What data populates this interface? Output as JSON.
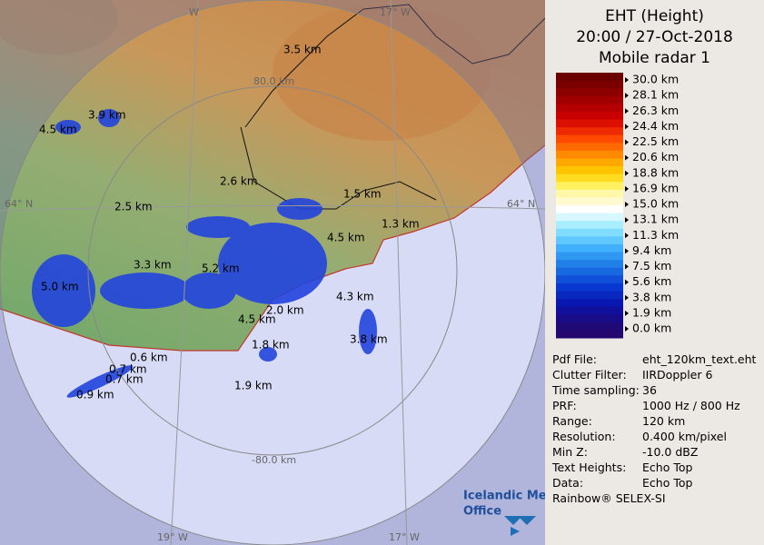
{
  "header": {
    "title": "EHT (Height)",
    "time": "20:00 / 27-Oct-2018",
    "station": "Mobile radar 1"
  },
  "legend": {
    "labels": [
      "30.0 km",
      "28.1 km",
      "26.3 km",
      "24.4 km",
      "22.5 km",
      "20.6 km",
      "18.8 km",
      "16.9 km",
      "15.0 km",
      "13.1 km",
      "11.3 km",
      "9.4 km",
      "7.5 km",
      "5.6 km",
      "3.8 km",
      "1.9 km",
      "0.0 km"
    ]
  },
  "info": {
    "rows": [
      [
        "Pdf File:",
        "eht_120km_text.eht"
      ],
      [
        "Clutter Filter:",
        "IIRDoppler 6"
      ],
      [
        "Time sampling:",
        "36"
      ],
      [
        "PRF:",
        "1000 Hz / 800 Hz"
      ],
      [
        "Range:",
        "120 km"
      ],
      [
        "Resolution:",
        "0.400 km/pixel"
      ],
      [
        "Min Z:",
        "-10.0 dBZ"
      ],
      [
        "Text Heights:",
        "Echo Top"
      ],
      [
        "Data:",
        "Echo Top"
      ]
    ],
    "footer": "Rainbow® SELEX-SI"
  },
  "map": {
    "grid_labels": [
      "W",
      "17° W",
      "80.0 km",
      "64° N",
      "64° N",
      "-80.0 km",
      "19° W",
      "17° W"
    ],
    "annotations": [
      "3.5 km",
      "3.9 km",
      "4.5 km",
      "2.6 km",
      "1.5 km",
      "2.5 km",
      "1.3 km",
      "4.5 km",
      "3.3 km",
      "5.2 km",
      "5.0 km",
      "4.3 km",
      "4.5 km",
      "2.0 km",
      "3.8 km",
      "1.8 km",
      "0.6 km",
      "0.7 km",
      "0.7 km",
      "0.9 km",
      "1.9 km"
    ],
    "logo": [
      "Icelandic Met",
      "Office"
    ]
  }
}
